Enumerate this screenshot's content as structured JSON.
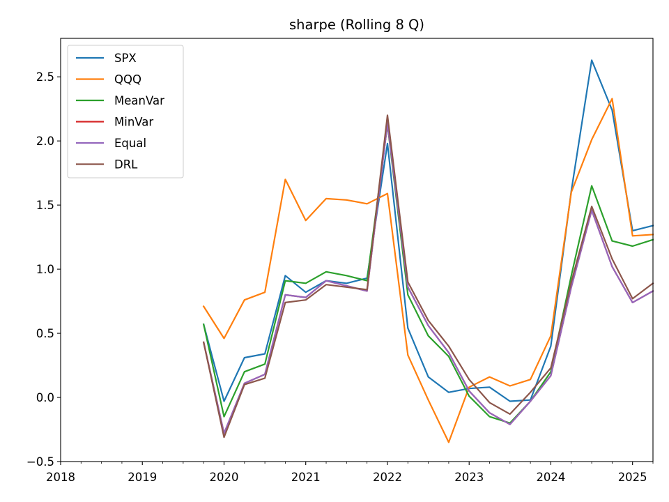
{
  "chart_data": {
    "type": "line",
    "title": "sharpe (Rolling 8 Q)",
    "xlabel": "",
    "ylabel": "",
    "xlim": [
      2018.0,
      2025.25
    ],
    "ylim": [
      -0.5,
      2.8
    ],
    "x_ticks": [
      2018,
      2019,
      2020,
      2021,
      2022,
      2023,
      2024,
      2025
    ],
    "x_tick_labels": [
      "2018",
      "2019",
      "2020",
      "2021",
      "2022",
      "2023",
      "2024",
      "2025"
    ],
    "y_ticks": [
      -0.5,
      0.0,
      0.5,
      1.0,
      1.5,
      2.0,
      2.5
    ],
    "y_tick_labels": [
      "−0.5",
      "0.0",
      "0.5",
      "1.0",
      "1.5",
      "2.0",
      "2.5"
    ],
    "grid": false,
    "legend_position": "top-left",
    "x": [
      2019.75,
      2020.0,
      2020.25,
      2020.5,
      2020.75,
      2021.0,
      2021.25,
      2021.5,
      2021.75,
      2022.0,
      2022.25,
      2022.5,
      2022.75,
      2023.0,
      2023.25,
      2023.5,
      2023.75,
      2024.0,
      2024.25,
      2024.5,
      2024.75,
      2025.0,
      2025.25
    ],
    "series": [
      {
        "name": "SPX",
        "color": "#1f77b4",
        "values": [
          0.57,
          -0.03,
          0.31,
          0.34,
          0.95,
          0.82,
          0.91,
          0.89,
          0.93,
          1.98,
          0.54,
          0.16,
          0.04,
          0.07,
          0.08,
          -0.03,
          -0.02,
          0.4,
          1.61,
          2.63,
          2.24,
          1.3,
          1.34
        ]
      },
      {
        "name": "QQQ",
        "color": "#ff7f0e",
        "values": [
          0.71,
          0.46,
          0.76,
          0.82,
          1.7,
          1.38,
          1.55,
          1.54,
          1.51,
          1.59,
          0.33,
          -0.02,
          -0.35,
          0.08,
          0.16,
          0.09,
          0.14,
          0.48,
          1.6,
          2.01,
          2.33,
          1.26,
          1.27
        ]
      },
      {
        "name": "MeanVar",
        "color": "#2ca02c",
        "values": [
          0.57,
          -0.15,
          0.2,
          0.26,
          0.91,
          0.89,
          0.98,
          0.95,
          0.91,
          2.13,
          0.8,
          0.48,
          0.32,
          0.01,
          -0.15,
          -0.2,
          -0.03,
          0.2,
          0.95,
          1.65,
          1.22,
          1.18,
          1.23
        ]
      },
      {
        "name": "MinVar",
        "color": "#d62728",
        "values": [
          0.43,
          -0.28,
          0.11,
          0.18,
          0.8,
          0.78,
          0.91,
          0.87,
          0.83,
          2.14,
          0.86,
          0.56,
          0.35,
          0.05,
          -0.12,
          -0.21,
          -0.03,
          0.17,
          0.86,
          1.46,
          1.02,
          0.74,
          0.83
        ]
      },
      {
        "name": "Equal",
        "color": "#9467bd",
        "values": [
          0.43,
          -0.28,
          0.11,
          0.18,
          0.8,
          0.78,
          0.91,
          0.87,
          0.83,
          2.14,
          0.86,
          0.56,
          0.35,
          0.05,
          -0.12,
          -0.21,
          -0.03,
          0.17,
          0.86,
          1.46,
          1.02,
          0.74,
          0.83
        ]
      },
      {
        "name": "DRL",
        "color": "#8c564b",
        "values": [
          0.43,
          -0.31,
          0.1,
          0.15,
          0.74,
          0.76,
          0.88,
          0.86,
          0.84,
          2.2,
          0.9,
          0.6,
          0.4,
          0.14,
          -0.04,
          -0.13,
          0.04,
          0.23,
          0.9,
          1.49,
          1.08,
          0.77,
          0.89
        ]
      }
    ]
  }
}
